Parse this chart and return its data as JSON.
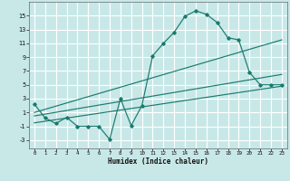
{
  "xlabel": "Humidex (Indice chaleur)",
  "bg_color": "#c8e8e8",
  "grid_color": "#ffffff",
  "line_color": "#1a7a6e",
  "xlim": [
    -0.5,
    23.5
  ],
  "ylim": [
    -4.2,
    17
  ],
  "xticks": [
    0,
    1,
    2,
    3,
    4,
    5,
    6,
    7,
    8,
    9,
    10,
    11,
    12,
    13,
    14,
    15,
    16,
    17,
    18,
    19,
    20,
    21,
    22,
    23
  ],
  "yticks": [
    -3,
    -1,
    1,
    3,
    5,
    7,
    9,
    11,
    13,
    15
  ],
  "main_x": [
    0,
    1,
    2,
    3,
    4,
    5,
    6,
    7,
    8,
    9,
    10,
    11,
    12,
    13,
    14,
    15,
    16,
    17,
    18,
    19,
    20,
    21,
    22,
    23
  ],
  "main_y": [
    2.2,
    0.2,
    -0.6,
    0.3,
    -1.0,
    -1.0,
    -1.0,
    -2.9,
    3.0,
    -0.9,
    2.0,
    9.2,
    11.0,
    12.6,
    14.9,
    15.7,
    15.2,
    14.0,
    11.8,
    11.5,
    6.8,
    5.0,
    5.0,
    5.0
  ],
  "trend1_x": [
    0,
    23
  ],
  "trend1_y": [
    1.0,
    11.5
  ],
  "trend2_x": [
    0,
    23
  ],
  "trend2_y": [
    0.5,
    6.5
  ],
  "trend3_x": [
    0,
    23
  ],
  "trend3_y": [
    -0.5,
    4.8
  ]
}
